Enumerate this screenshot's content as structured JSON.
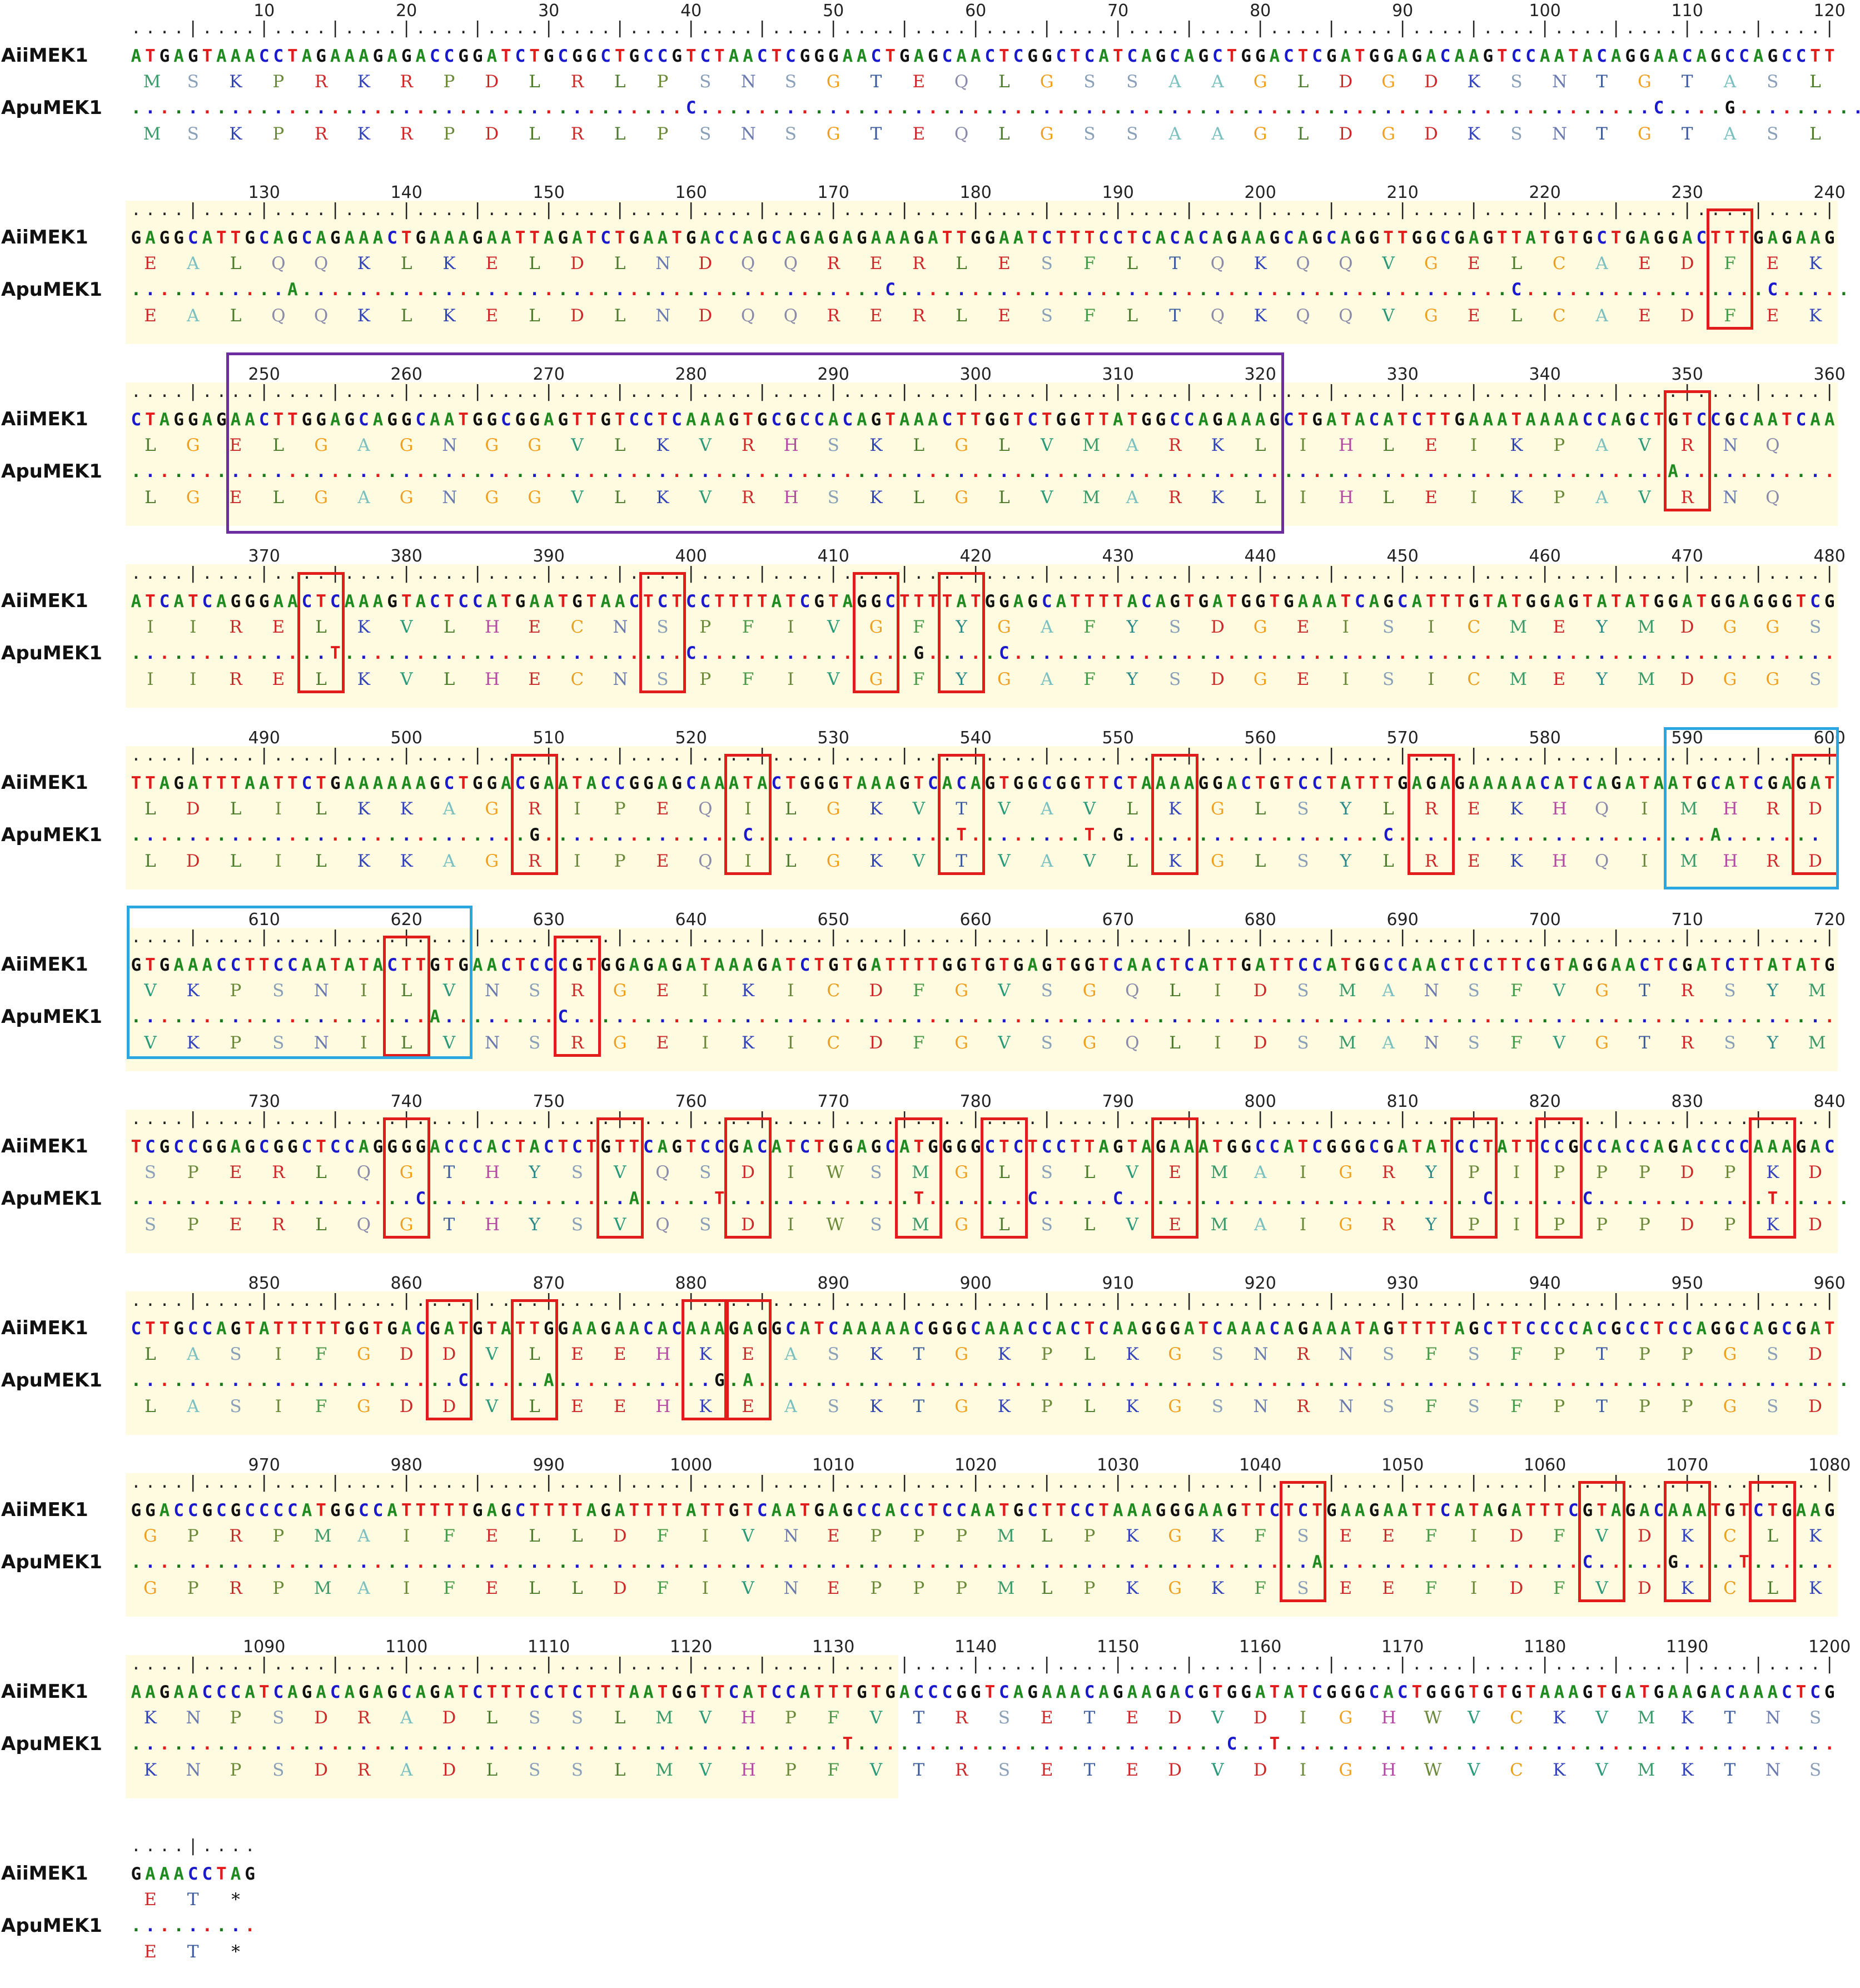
{
  "sequences": {
    "top_name": "AiiMEK1",
    "bottom_name": "ApuMEK1"
  },
  "colors": {
    "A": "#1f8a1f",
    "C": "#1a1acc",
    "G": "#111111",
    "T": "#e21b1b",
    "aa": {
      "M": "#3a9a6a",
      "S": "#8aa0b8",
      "K": "#3344bb",
      "P": "#6a8a3a",
      "R": "#cc2a2a",
      "D": "#cc2a2a",
      "L": "#4a7a2a",
      "N": "#6a7ab0",
      "G": "#f0a020",
      "T": "#3a5a9a",
      "E": "#cc2a2a",
      "Q": "#8a8aaa",
      "A": "#7ac0c0",
      "F": "#4a9a4a",
      "C": "#e8a020",
      "V": "#2a9a7a",
      "H": "#b44aa4",
      "I": "#6a8a3a",
      "Y": "#2a8a8a",
      "W": "#6a8a3a",
      "*": "#111111"
    },
    "shade": "#fefbe0",
    "red_box": "#e21b1b",
    "purple_box": "#6b2d9f",
    "cyan_box": "#2aa6e1"
  },
  "blocks": [
    {
      "start": 1,
      "top_nt": "ATGAGTAAACCTAGAAAGAGACCGGATCTGCGGCTGCCGTCTAACTCGGGAACTGAGCAACTCGGCTCATCAGCAGCTGGACTCGATGGAGACAAGTCCAATACAGGAACAGCCAGCCTT",
      "top_aa": "MSKPRKRPDLRLPSNSGTEQLGSSAAGLDGDKSNTGTASL",
      "bot_nt": ".......................................C...................................................................C....G...........",
      "bot_aa": "MSKPRKRPDLRLPSNSGTEQLGSSAAGLDGDKSNTGTASL",
      "shade": []
    },
    {
      "start": 121,
      "top_nt": "GAGGCATTGCAGCAGAAACTGAAAGAATTAGATCTGAATGACCAGCAGAGAGAAAGATTGGAATCTTTCCTCACACAGAAGCAGCAGGTTGGCGAGTTATGTGCTGAGGACTTTGAGAAG",
      "top_aa": "EALQQKLKELDLNDQQRERLESFLTQKQQVGELCAEDFEK",
      "bot_nt": "...........A.........................................C...........................................C.................C.....",
      "bot_aa": "EALQQKLKELDLNDQQRERLESFLTQKQQVGELCAEDFEK",
      "shade": [
        [
          1,
          120
        ]
      ]
    },
    {
      "start": 241,
      "top_nt": "CTAGGAGAACTTGGAGCAGGCAATGGCGGAGTTGTCCTCAAAGTGCGCCACAGTAAACTTGGTCTGGTTATGGCCAGAAAGCTGATACATCTTGAAATAAAACCAGCTGTCCGCAATCAA",
      "top_aa": "LGELGAGNGGVLKVRHSKLGLVMARKLIHLEIKPAVRNQ",
      "bot_nt": "............................................................................................................A...........",
      "bot_aa": "LGELGAGNGGVLKVRHSKLGLVMARKLIHLEIKPAVRNQ",
      "shade": [
        [
          1,
          120
        ]
      ]
    },
    {
      "start": 361,
      "top_nt": "ATCATCAGGGAACTCAAAGTACTCCATGAATGTAACTCTCCTTTTATCGTAGGCTTTTATGGAGCATTTTACAGTGATGGTGAAATCAGCATTTGTATGGAGTATATGGATGGAGGGTCG",
      "top_aa": "IIRELKVLHECNSPFIVGFYGAFYSDGEISICMEYMDGGS",
      "bot_nt": "..............T........................C...............G.....C..........................................................",
      "bot_aa": "IIRELKVLHECNSPFIVGFYGAFYSDGEISICMEYMDGGS",
      "shade": [
        [
          1,
          120
        ]
      ]
    },
    {
      "start": 481,
      "top_nt": "TTAGATTTAATTCTGAAAAAAGCTGGACGAATACCGGAGCAAATACTGGGTAAAGTCACAGTGGCGGTTCTAAAAGGACTGTCCTATTTGAGAGAAAAACATCAGATAATGCATCGAGAT",
      "top_aa": "LDLILKKAGRIPEQILGKVTVAVLKGLSYLREKHQIMHRD",
      "bot_nt": "............................G..............C..............T........T.G..................C......................A.......",
      "bot_aa": "LDLILKKAGRIPEQILGKVTVAVLKGLSYLREKHQIMHRD",
      "shade": [
        [
          1,
          120
        ]
      ]
    },
    {
      "start": 601,
      "top_nt": "GTGAAACCTTCCAATATACTTGTGAACTCCCGTGGAGAGATAAAGATCTGTGATTTTGGTGTGAGTGGTCAACTCATTGATTCCATGGCCAACTCCTTCGTAGGAACTCGATCTTATATG",
      "top_aa": "VKPSNILVNSRGEIKICDFGVSGQLIDSMANSFVGTRSYM",
      "bot_nt": ".....................A........C.........................................................................................",
      "bot_aa": "VKPSNILVNSRGEIKICDFGVSGQLIDSMANSFVGTRSYM",
      "shade": [
        [
          1,
          120
        ]
      ]
    },
    {
      "start": 721,
      "top_nt": "TCGCCGGAGCGGCTCCAGGGGACCCACTACTCTGTTCAGTCCGACATCTGGAGCATGGGGCTCTCCTTAGTAGAAATGGCCATCGGGCGATATCCTATTCCGCCACCAGACCCCAAAGAC",
      "top_aa": "SPERLQGTHYSVQSDIWSMGLSLVEMAIGRYPIPPPDPKD",
      "bot_nt": "....................C..............A.....T.............T.......C.....C.........................C......C............T.....",
      "bot_aa": "SPERLQGTHYSVQSDIWSMGLSLVEMAIGRYPIPPPDPKD",
      "shade": [
        [
          1,
          120
        ]
      ]
    },
    {
      "start": 841,
      "top_nt": "CTTGCCAGTATTTTTGGTGACGATGTATTGGAAGAACACAAAGAGGCATCAAAAACGGGCAAACCACTCAAGGGATCAAACAGAAATAGTTTTAGCTTCCCCACGCCTCCAGGCAGCGAT",
      "top_aa": "LASIFGDDVLEEHKEASKTGKPLKGSNRNSFSFPTPPGSD",
      "bot_nt": ".......................C.....A...........G.A.............................................................................",
      "bot_aa": "LASIFGDDVLEEHKEASKTGKPLKGSNRNSFSFPTPPGSD",
      "shade": [
        [
          1,
          120
        ]
      ]
    },
    {
      "start": 961,
      "top_nt": "GGACCGCGCCCCATGGCCATTTTTGAGCTTTTAGATTTTATTGTCAATGAGCCACCTCCAATGCTTCCTAAAGGGAAGTTCTCTGAAGAATTCATAGATTTCGTAGACAAATGTCTGAAG",
      "top_aa": "GPRPMAIFELLDFIVNEPPPMLPKGKFSEEFIDFVDKCLK",
      "bot_nt": "...................................................................................A..................C.....G....T......",
      "bot_aa": "GPRPMAIFELLDFIVNEPPPMLPKGKFSEEFIDFVDKCLK",
      "shade": [
        [
          1,
          120
        ]
      ]
    },
    {
      "start": 1081,
      "top_nt": "AAGAACCCATCAGACAGAGCAGATCTTTCCTCTTTAATGGTTCATCCATTTGTGACCCGGTCAGAAACAGAAGACGTGGATATCGGGCACTGGGTGTGTAAAGTGATGAAGACAAACTCG",
      "top_aa": "KNPSDRADLSSLMVHPFVTRSETEDVDIGHWVCKVMKTNS",
      "bot_nt": "..................................................T..........................C..T.......................................",
      "bot_aa": "KNPSDRADLSSLMVHPFVTRSETEDVDIGHWVCKVMKTNS",
      "shade": [
        [
          1,
          54
        ]
      ]
    },
    {
      "start": 1201,
      "top_nt": "GAAACCTAG",
      "top_aa": "ET*",
      "bot_nt": ".........",
      "bot_aa": "ET*",
      "shade": []
    }
  ],
  "red_boxes": [
    [
      1,
      232,
      234
    ],
    [
      2,
      349,
      351
    ],
    [
      3,
      373,
      375
    ],
    [
      3,
      397,
      399
    ],
    [
      3,
      412,
      414
    ],
    [
      3,
      418,
      420
    ],
    [
      4,
      508,
      510
    ],
    [
      4,
      523,
      525
    ],
    [
      4,
      538,
      540
    ],
    [
      4,
      553,
      555
    ],
    [
      4,
      571,
      573
    ],
    [
      4,
      598,
      600
    ],
    [
      5,
      619,
      621
    ],
    [
      5,
      631,
      633
    ],
    [
      6,
      739,
      741
    ],
    [
      6,
      754,
      756
    ],
    [
      6,
      763,
      765
    ],
    [
      6,
      775,
      777
    ],
    [
      6,
      781,
      783
    ],
    [
      6,
      793,
      795
    ],
    [
      6,
      814,
      816
    ],
    [
      6,
      820,
      822
    ],
    [
      6,
      835,
      837
    ],
    [
      7,
      862,
      864
    ],
    [
      7,
      868,
      870
    ],
    [
      7,
      880,
      882
    ],
    [
      7,
      883,
      885
    ],
    [
      8,
      1042,
      1044
    ],
    [
      8,
      1063,
      1065
    ],
    [
      8,
      1069,
      1071
    ],
    [
      8,
      1075,
      1077
    ]
  ],
  "purple_boxes": [
    [
      2,
      248,
      321
    ]
  ],
  "cyan_boxes": [
    [
      4,
      589,
      600
    ],
    [
      5,
      601,
      624
    ]
  ]
}
